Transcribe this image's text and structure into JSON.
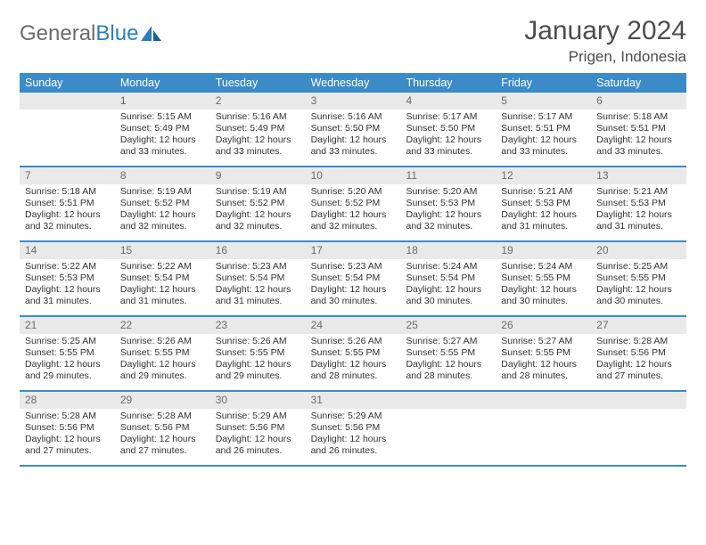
{
  "logo": {
    "part1": "General",
    "part2": "Blue"
  },
  "title": "January 2024",
  "subtitle": "Prigen, Indonesia",
  "colors": {
    "header_bg": "#3b8bc9",
    "header_text": "#ffffff",
    "daynum_bg": "#e9e9e9",
    "daynum_text": "#6b6b6b",
    "body_text": "#333333",
    "rule": "#3b8bc9",
    "logo_gray": "#6b6b6b",
    "logo_blue": "#2b7fbf"
  },
  "weekdays": [
    "Sunday",
    "Monday",
    "Tuesday",
    "Wednesday",
    "Thursday",
    "Friday",
    "Saturday"
  ],
  "weeks": [
    [
      {
        "n": "",
        "sunrise": "",
        "sunset": "",
        "daylight1": "",
        "daylight2": ""
      },
      {
        "n": "1",
        "sunrise": "Sunrise: 5:15 AM",
        "sunset": "Sunset: 5:49 PM",
        "daylight1": "Daylight: 12 hours",
        "daylight2": "and 33 minutes."
      },
      {
        "n": "2",
        "sunrise": "Sunrise: 5:16 AM",
        "sunset": "Sunset: 5:49 PM",
        "daylight1": "Daylight: 12 hours",
        "daylight2": "and 33 minutes."
      },
      {
        "n": "3",
        "sunrise": "Sunrise: 5:16 AM",
        "sunset": "Sunset: 5:50 PM",
        "daylight1": "Daylight: 12 hours",
        "daylight2": "and 33 minutes."
      },
      {
        "n": "4",
        "sunrise": "Sunrise: 5:17 AM",
        "sunset": "Sunset: 5:50 PM",
        "daylight1": "Daylight: 12 hours",
        "daylight2": "and 33 minutes."
      },
      {
        "n": "5",
        "sunrise": "Sunrise: 5:17 AM",
        "sunset": "Sunset: 5:51 PM",
        "daylight1": "Daylight: 12 hours",
        "daylight2": "and 33 minutes."
      },
      {
        "n": "6",
        "sunrise": "Sunrise: 5:18 AM",
        "sunset": "Sunset: 5:51 PM",
        "daylight1": "Daylight: 12 hours",
        "daylight2": "and 33 minutes."
      }
    ],
    [
      {
        "n": "7",
        "sunrise": "Sunrise: 5:18 AM",
        "sunset": "Sunset: 5:51 PM",
        "daylight1": "Daylight: 12 hours",
        "daylight2": "and 32 minutes."
      },
      {
        "n": "8",
        "sunrise": "Sunrise: 5:19 AM",
        "sunset": "Sunset: 5:52 PM",
        "daylight1": "Daylight: 12 hours",
        "daylight2": "and 32 minutes."
      },
      {
        "n": "9",
        "sunrise": "Sunrise: 5:19 AM",
        "sunset": "Sunset: 5:52 PM",
        "daylight1": "Daylight: 12 hours",
        "daylight2": "and 32 minutes."
      },
      {
        "n": "10",
        "sunrise": "Sunrise: 5:20 AM",
        "sunset": "Sunset: 5:52 PM",
        "daylight1": "Daylight: 12 hours",
        "daylight2": "and 32 minutes."
      },
      {
        "n": "11",
        "sunrise": "Sunrise: 5:20 AM",
        "sunset": "Sunset: 5:53 PM",
        "daylight1": "Daylight: 12 hours",
        "daylight2": "and 32 minutes."
      },
      {
        "n": "12",
        "sunrise": "Sunrise: 5:21 AM",
        "sunset": "Sunset: 5:53 PM",
        "daylight1": "Daylight: 12 hours",
        "daylight2": "and 31 minutes."
      },
      {
        "n": "13",
        "sunrise": "Sunrise: 5:21 AM",
        "sunset": "Sunset: 5:53 PM",
        "daylight1": "Daylight: 12 hours",
        "daylight2": "and 31 minutes."
      }
    ],
    [
      {
        "n": "14",
        "sunrise": "Sunrise: 5:22 AM",
        "sunset": "Sunset: 5:53 PM",
        "daylight1": "Daylight: 12 hours",
        "daylight2": "and 31 minutes."
      },
      {
        "n": "15",
        "sunrise": "Sunrise: 5:22 AM",
        "sunset": "Sunset: 5:54 PM",
        "daylight1": "Daylight: 12 hours",
        "daylight2": "and 31 minutes."
      },
      {
        "n": "16",
        "sunrise": "Sunrise: 5:23 AM",
        "sunset": "Sunset: 5:54 PM",
        "daylight1": "Daylight: 12 hours",
        "daylight2": "and 31 minutes."
      },
      {
        "n": "17",
        "sunrise": "Sunrise: 5:23 AM",
        "sunset": "Sunset: 5:54 PM",
        "daylight1": "Daylight: 12 hours",
        "daylight2": "and 30 minutes."
      },
      {
        "n": "18",
        "sunrise": "Sunrise: 5:24 AM",
        "sunset": "Sunset: 5:54 PM",
        "daylight1": "Daylight: 12 hours",
        "daylight2": "and 30 minutes."
      },
      {
        "n": "19",
        "sunrise": "Sunrise: 5:24 AM",
        "sunset": "Sunset: 5:55 PM",
        "daylight1": "Daylight: 12 hours",
        "daylight2": "and 30 minutes."
      },
      {
        "n": "20",
        "sunrise": "Sunrise: 5:25 AM",
        "sunset": "Sunset: 5:55 PM",
        "daylight1": "Daylight: 12 hours",
        "daylight2": "and 30 minutes."
      }
    ],
    [
      {
        "n": "21",
        "sunrise": "Sunrise: 5:25 AM",
        "sunset": "Sunset: 5:55 PM",
        "daylight1": "Daylight: 12 hours",
        "daylight2": "and 29 minutes."
      },
      {
        "n": "22",
        "sunrise": "Sunrise: 5:26 AM",
        "sunset": "Sunset: 5:55 PM",
        "daylight1": "Daylight: 12 hours",
        "daylight2": "and 29 minutes."
      },
      {
        "n": "23",
        "sunrise": "Sunrise: 5:26 AM",
        "sunset": "Sunset: 5:55 PM",
        "daylight1": "Daylight: 12 hours",
        "daylight2": "and 29 minutes."
      },
      {
        "n": "24",
        "sunrise": "Sunrise: 5:26 AM",
        "sunset": "Sunset: 5:55 PM",
        "daylight1": "Daylight: 12 hours",
        "daylight2": "and 28 minutes."
      },
      {
        "n": "25",
        "sunrise": "Sunrise: 5:27 AM",
        "sunset": "Sunset: 5:55 PM",
        "daylight1": "Daylight: 12 hours",
        "daylight2": "and 28 minutes."
      },
      {
        "n": "26",
        "sunrise": "Sunrise: 5:27 AM",
        "sunset": "Sunset: 5:55 PM",
        "daylight1": "Daylight: 12 hours",
        "daylight2": "and 28 minutes."
      },
      {
        "n": "27",
        "sunrise": "Sunrise: 5:28 AM",
        "sunset": "Sunset: 5:56 PM",
        "daylight1": "Daylight: 12 hours",
        "daylight2": "and 27 minutes."
      }
    ],
    [
      {
        "n": "28",
        "sunrise": "Sunrise: 5:28 AM",
        "sunset": "Sunset: 5:56 PM",
        "daylight1": "Daylight: 12 hours",
        "daylight2": "and 27 minutes."
      },
      {
        "n": "29",
        "sunrise": "Sunrise: 5:28 AM",
        "sunset": "Sunset: 5:56 PM",
        "daylight1": "Daylight: 12 hours",
        "daylight2": "and 27 minutes."
      },
      {
        "n": "30",
        "sunrise": "Sunrise: 5:29 AM",
        "sunset": "Sunset: 5:56 PM",
        "daylight1": "Daylight: 12 hours",
        "daylight2": "and 26 minutes."
      },
      {
        "n": "31",
        "sunrise": "Sunrise: 5:29 AM",
        "sunset": "Sunset: 5:56 PM",
        "daylight1": "Daylight: 12 hours",
        "daylight2": "and 26 minutes."
      },
      {
        "n": "",
        "sunrise": "",
        "sunset": "",
        "daylight1": "",
        "daylight2": ""
      },
      {
        "n": "",
        "sunrise": "",
        "sunset": "",
        "daylight1": "",
        "daylight2": ""
      },
      {
        "n": "",
        "sunrise": "",
        "sunset": "",
        "daylight1": "",
        "daylight2": ""
      }
    ]
  ]
}
